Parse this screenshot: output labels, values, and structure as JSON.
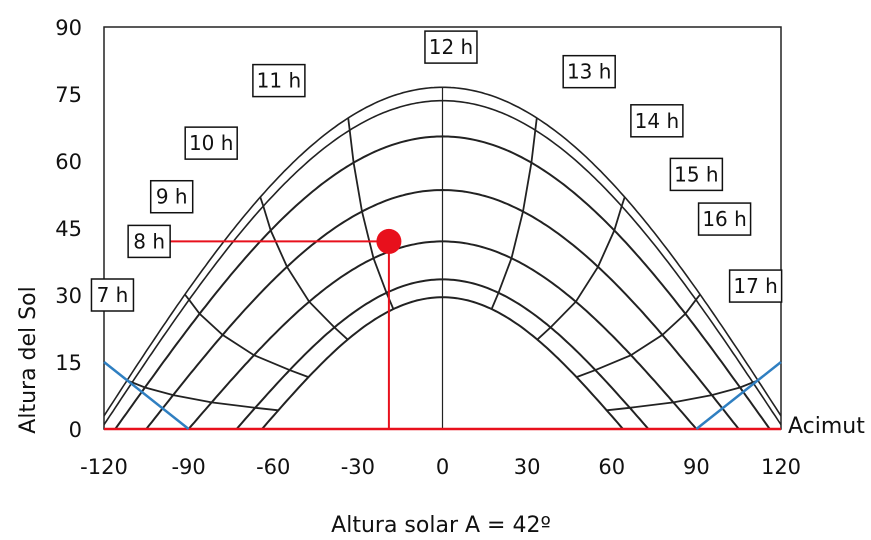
{
  "chart_data": {
    "type": "line",
    "title": "",
    "xlabel": "Altura solar A = 42º",
    "ylabel": "Altura del Sol",
    "x_axis_end_label": "Acimut",
    "xlim": [
      -120,
      120
    ],
    "ylim": [
      0,
      90
    ],
    "x_ticks": [
      "-120",
      "-90",
      "-60",
      "-30",
      "0",
      "30",
      "60",
      "90",
      "120"
    ],
    "y_ticks": [
      "0",
      "15",
      "30",
      "45",
      "60",
      "75",
      "90"
    ],
    "grid": false,
    "colors": {
      "curves": "#222222",
      "marker": "#e8101c",
      "horizon": "#e8101c",
      "shade_lines": "#2f7fc1"
    },
    "day_paths": [
      {
        "peak": 76.5,
        "x0": 123
      },
      {
        "peak": 73.5,
        "x0": 121
      },
      {
        "peak": 65.5,
        "x0": 116
      },
      {
        "peak": 53.5,
        "x0": 105
      },
      {
        "peak": 42,
        "x0": 90
      },
      {
        "peak": 33.5,
        "x0": 73
      },
      {
        "peak": 29.5,
        "x0": 64
      }
    ],
    "hour_labels": [
      {
        "text": "7 h",
        "x": -117,
        "y": 30
      },
      {
        "text": "8 h",
        "x": -104,
        "y": 42
      },
      {
        "text": "9 h",
        "x": -96,
        "y": 52
      },
      {
        "text": "10 h",
        "x": -82,
        "y": 64
      },
      {
        "text": "11 h",
        "x": -58,
        "y": 78
      },
      {
        "text": "12 h",
        "x": 3,
        "y": 85.5
      },
      {
        "text": "13 h",
        "x": 52,
        "y": 80
      },
      {
        "text": "14 h",
        "x": 76,
        "y": 69
      },
      {
        "text": "15 h",
        "x": 90,
        "y": 57
      },
      {
        "text": "16 h",
        "x": 100,
        "y": 47
      },
      {
        "text": "17 h",
        "x": 111,
        "y": 32
      }
    ],
    "marked_point": {
      "azimuth": -19,
      "altitude": 42
    },
    "shade_lines": [
      {
        "from": [
          -120,
          15
        ],
        "to": [
          -90,
          0
        ]
      },
      {
        "from": [
          90,
          0
        ],
        "to": [
          120,
          15
        ]
      }
    ]
  }
}
